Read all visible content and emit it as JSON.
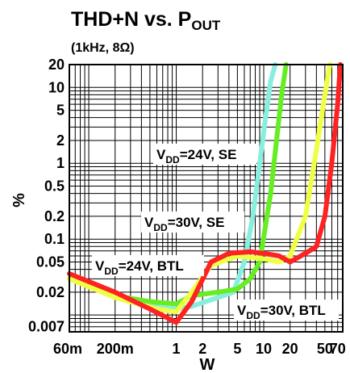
{
  "chart_data": {
    "type": "line",
    "title_main": "THD+N vs. P",
    "title_sub": "OUT",
    "subtitle": "(1kHz, 8Ω)",
    "xlabel": "W",
    "ylabel": "%",
    "x_scale": "log",
    "y_scale": "log",
    "xlim": [
      0.06,
      80
    ],
    "ylim": [
      0.006,
      20
    ],
    "grid": true,
    "x_tick_labels": [
      {
        "value": 0.06,
        "label": "60m"
      },
      {
        "value": 0.2,
        "label": "200m"
      },
      {
        "value": 1,
        "label": "1"
      },
      {
        "value": 2,
        "label": "2"
      },
      {
        "value": 5,
        "label": "5"
      },
      {
        "value": 10,
        "label": "10"
      },
      {
        "value": 20,
        "label": "20"
      },
      {
        "value": 50,
        "label": "50"
      },
      {
        "value": 70,
        "label": "70"
      }
    ],
    "y_tick_labels": [
      {
        "value": 20,
        "label": "20"
      },
      {
        "value": 10,
        "label": "10"
      },
      {
        "value": 5,
        "label": "5"
      },
      {
        "value": 2,
        "label": "2"
      },
      {
        "value": 1,
        "label": "1"
      },
      {
        "value": 0.5,
        "label": "0.5"
      },
      {
        "value": 0.2,
        "label": "0.2"
      },
      {
        "value": 0.1,
        "label": "0.1"
      },
      {
        "value": 0.05,
        "label": "0.05"
      },
      {
        "value": 0.02,
        "label": "0.02"
      },
      {
        "value": 0.007,
        "label": "0.007"
      }
    ],
    "series": [
      {
        "color": "#88eedd",
        "x": [
          0.06,
          0.2,
          0.5,
          1.0,
          1.5,
          3.0,
          4.5,
          6.0,
          7.5,
          9.0,
          10.5,
          12.0,
          13.5
        ],
        "y": [
          0.03,
          0.018,
          0.013,
          0.012,
          0.013,
          0.017,
          0.02,
          0.05,
          0.2,
          1.0,
          4.0,
          12.0,
          20.0
        ]
      },
      {
        "color": "#66ee22",
        "x": [
          0.06,
          0.2,
          0.5,
          1.0,
          1.5,
          3.0,
          5.0,
          7.0,
          9.0,
          12.0,
          14.0,
          16.0,
          18.0
        ],
        "y": [
          0.03,
          0.018,
          0.015,
          0.014,
          0.018,
          0.02,
          0.022,
          0.03,
          0.05,
          0.4,
          2.0,
          8.0,
          20.0
        ]
      },
      {
        "color": "#eeff44",
        "x": [
          0.06,
          0.2,
          0.6,
          1.0,
          1.5,
          2.5,
          5.0,
          10.0,
          15.0,
          20.0,
          30.0,
          40.0,
          50.0,
          57.0
        ],
        "y": [
          0.03,
          0.017,
          0.012,
          0.011,
          0.02,
          0.045,
          0.06,
          0.055,
          0.05,
          0.06,
          0.2,
          1.5,
          8.0,
          20.0
        ]
      },
      {
        "color": "#ff2222",
        "x": [
          0.06,
          0.2,
          0.5,
          1.0,
          1.5,
          2.5,
          4.0,
          7.0,
          10.0,
          15.0,
          20.0,
          30.0,
          40.0,
          50.0,
          60.0,
          70.0,
          75.0
        ],
        "y": [
          0.035,
          0.02,
          0.012,
          0.008,
          0.015,
          0.05,
          0.065,
          0.068,
          0.065,
          0.06,
          0.05,
          0.065,
          0.08,
          0.2,
          1.0,
          6.0,
          20.0
        ]
      }
    ],
    "annotations": [
      {
        "main": "V",
        "sub": "DD",
        "rest": "=24V, SE"
      },
      {
        "main": "V",
        "sub": "DD",
        "rest": "=30V, SE"
      },
      {
        "main": "V",
        "sub": "DD",
        "rest": "=24V, BTL"
      },
      {
        "main": "V",
        "sub": "DD",
        "rest": "=30V, BTL"
      }
    ]
  }
}
